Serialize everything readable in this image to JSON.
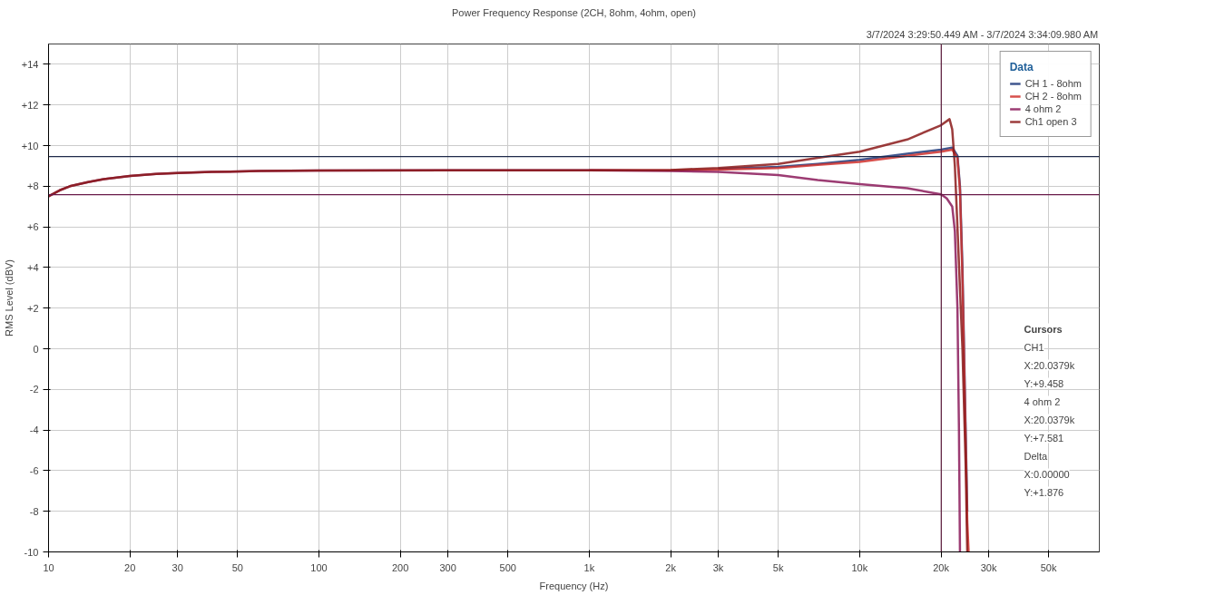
{
  "chart_data": {
    "type": "line",
    "title": "Power Frequency Response (2CH, 8ohm, 4ohm, open)",
    "subtitle": "3/7/2024 3:29:50.449 AM - 3/7/2024 3:34:09.980 AM",
    "xlabel": "Frequency (Hz)",
    "ylabel": "RMS Level (dBV)",
    "legend_title": "Data",
    "legend": "top right",
    "grid": true,
    "log": "x",
    "line_style": "solid",
    "xlim": [
      10,
      77000
    ],
    "ylim": [
      -10,
      15
    ],
    "xticks": [
      10,
      20,
      30,
      50,
      100,
      200,
      300,
      500,
      {
        "value": 1000,
        "label": "1k"
      },
      {
        "value": 2000,
        "label": "2k"
      },
      {
        "value": 3000,
        "label": "3k"
      },
      {
        "value": 5000,
        "label": "5k"
      },
      {
        "value": 10000,
        "label": "10k"
      },
      {
        "value": 20000,
        "label": "20k"
      },
      {
        "value": 30000,
        "label": "30k"
      },
      {
        "value": 50000,
        "label": "50k"
      }
    ],
    "yticks": [
      -10,
      -8,
      -6,
      -4,
      -2,
      0,
      {
        "value": 2,
        "label": "+2"
      },
      {
        "value": 4,
        "label": "+4"
      },
      {
        "value": 6,
        "label": "+6"
      },
      {
        "value": 8,
        "label": "+8"
      },
      {
        "value": 10,
        "label": "+10"
      },
      {
        "value": 12,
        "label": "+12"
      },
      {
        "value": 14,
        "label": "+14"
      }
    ],
    "ref_lines": [
      {
        "axis": "y",
        "value": 9.458,
        "color": "#1f2a4a"
      },
      {
        "axis": "y",
        "value": 7.581,
        "color": "#6a1a4a"
      },
      {
        "axis": "x",
        "value": 20037.9,
        "color": "#5a1a3a"
      }
    ],
    "annotations": [
      "Cursors",
      "CH1",
      "X:20.0379k",
      "Y:+9.458",
      "4 ohm 2",
      "X:20.0379k",
      "Y:+7.581",
      "Delta",
      "X:0.00000",
      "Y:+1.876"
    ],
    "series": [
      {
        "name": "CH 1 - 8ohm",
        "color": "#1f3a7a",
        "x": [
          3000,
          5000,
          7000,
          10000,
          15000,
          20000,
          22000,
          23000,
          23500,
          24000,
          24500,
          25000
        ],
        "values": [
          8.85,
          8.95,
          9.1,
          9.3,
          9.6,
          9.8,
          9.9,
          9.5,
          8,
          4,
          -2,
          -8
        ]
      },
      {
        "name": "CH 2 - 8ohm",
        "color": "#d0312d",
        "x": [
          1000,
          2000,
          3000,
          5000,
          7000,
          10000,
          15000,
          20000,
          22000,
          23000,
          23500,
          24000,
          24500,
          25000,
          25300
        ],
        "values": [
          8.78,
          8.78,
          8.82,
          8.9,
          9.05,
          9.2,
          9.5,
          9.7,
          9.8,
          9.4,
          7.8,
          3.5,
          -2.5,
          -8.5,
          -10
        ]
      },
      {
        "name": "4 ohm 2",
        "color": "#8b1a5a",
        "x": [
          10,
          11,
          12,
          14,
          16,
          20,
          25,
          30,
          40,
          60,
          100,
          300,
          1000,
          2000,
          3000,
          5000,
          7000,
          10000,
          15000,
          20000,
          21000,
          22000,
          22500,
          23000,
          23300,
          23500
        ],
        "values": [
          7.5,
          7.8,
          8.0,
          8.2,
          8.35,
          8.5,
          8.6,
          8.65,
          8.7,
          8.75,
          8.77,
          8.78,
          8.78,
          8.75,
          8.7,
          8.55,
          8.3,
          8.1,
          7.9,
          7.6,
          7.4,
          7.0,
          5.8,
          2,
          -4,
          -10
        ]
      },
      {
        "name": "Ch1 open 3",
        "color": "#8b1a1a",
        "x": [
          10,
          11,
          12,
          14,
          16,
          20,
          25,
          30,
          40,
          60,
          100,
          300,
          1000,
          2000,
          3000,
          5000,
          7000,
          10000,
          15000,
          20000,
          21500,
          22000,
          22500,
          23000,
          24000,
          24700,
          25000
        ],
        "values": [
          7.5,
          7.8,
          8.0,
          8.2,
          8.35,
          8.5,
          8.6,
          8.65,
          8.7,
          8.75,
          8.77,
          8.78,
          8.78,
          8.8,
          8.9,
          9.1,
          9.4,
          9.7,
          10.3,
          11.0,
          11.3,
          10.8,
          9.0,
          6,
          0,
          -6,
          -10
        ]
      }
    ]
  }
}
